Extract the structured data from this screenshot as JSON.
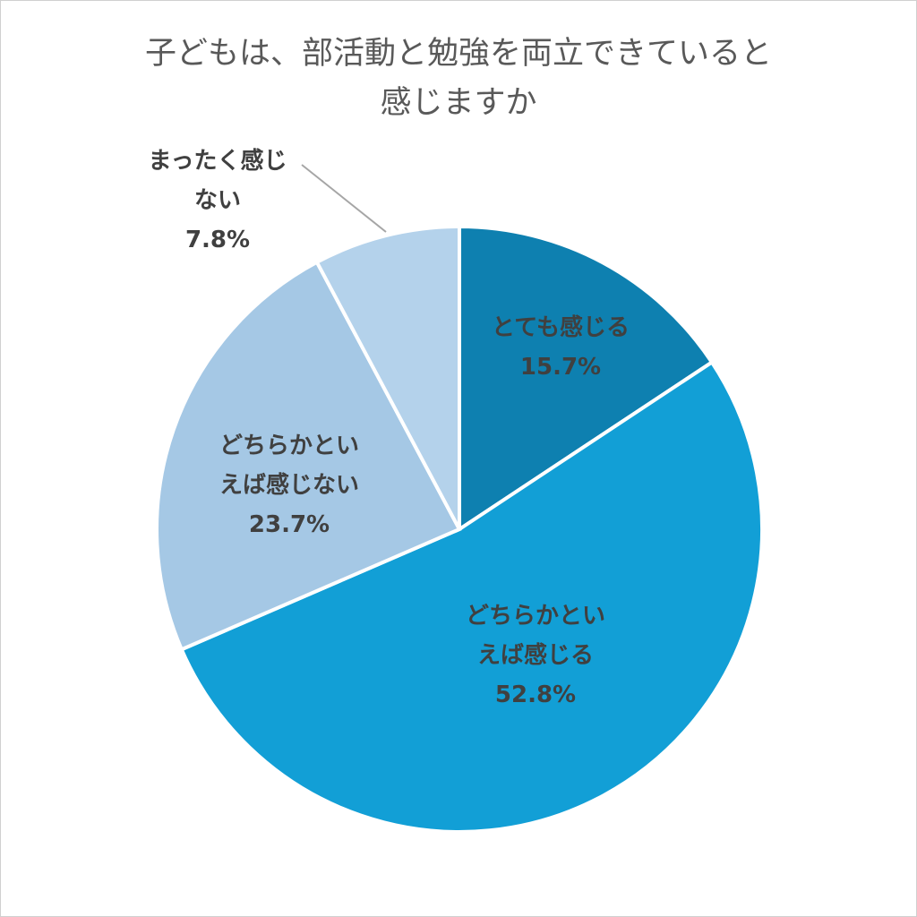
{
  "chart_data": {
    "type": "pie",
    "title": "子どもは、部活動と勉強を両立できていると感じますか",
    "categories": [
      "とても感じる",
      "どちらかといえば感じる",
      "どちらかといえば感じない",
      "まったく感じない"
    ],
    "values": [
      15.7,
      52.8,
      23.7,
      7.8
    ],
    "value_labels": [
      "15.7%",
      "52.8%",
      "23.7%",
      "7.8%"
    ],
    "colors": [
      "#0e80b0",
      "#129fd6",
      "#a5c8e5",
      "#b4d2eb"
    ]
  }
}
